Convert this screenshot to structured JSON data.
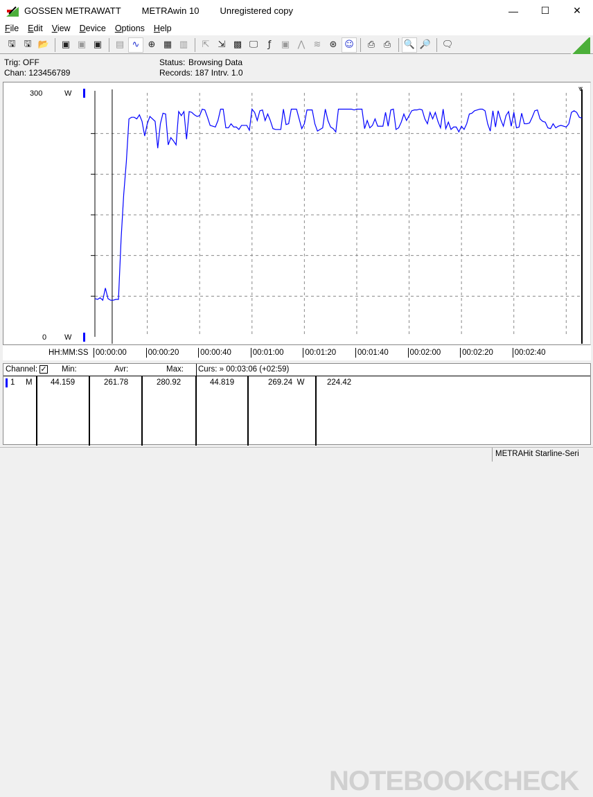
{
  "window": {
    "brand": "GOSSEN METRAWATT",
    "app": "METRAwin 10",
    "license": "Unregistered copy",
    "controls": {
      "minimize": "—",
      "maximize": "☐",
      "close": "✕"
    }
  },
  "menu": [
    "File",
    "Edit",
    "View",
    "Device",
    "Options",
    "Help"
  ],
  "toolbar": [
    {
      "icon": "save-icon",
      "glyph": "🖫",
      "state": "normal"
    },
    {
      "icon": "save-as-icon",
      "glyph": "🖫",
      "state": "normal"
    },
    {
      "icon": "open-folder-icon",
      "glyph": "📂",
      "state": "normal"
    },
    {
      "sep": true
    },
    {
      "icon": "device-read-icon",
      "glyph": "▣",
      "state": "normal"
    },
    {
      "icon": "device-transfer-icon",
      "glyph": "▣",
      "state": "disabled"
    },
    {
      "icon": "memory-read-icon",
      "glyph": "▣",
      "state": "normal"
    },
    {
      "sep": true
    },
    {
      "icon": "keypad-icon",
      "glyph": "▤",
      "state": "disabled"
    },
    {
      "icon": "waveform-icon",
      "glyph": "∿",
      "state": "active"
    },
    {
      "icon": "crosshair-icon",
      "glyph": "⊕",
      "state": "normal"
    },
    {
      "icon": "table-icon",
      "glyph": "▦",
      "state": "normal"
    },
    {
      "icon": "bar-chart-icon",
      "glyph": "▥",
      "state": "disabled"
    },
    {
      "sep": true
    },
    {
      "icon": "export-icon",
      "glyph": "⇱",
      "state": "disabled"
    },
    {
      "icon": "import-icon",
      "glyph": "⇲",
      "state": "normal"
    },
    {
      "icon": "logger-icon",
      "glyph": "▩",
      "state": "normal"
    },
    {
      "icon": "monitor-icon",
      "glyph": "🖵",
      "state": "normal"
    },
    {
      "icon": "function-icon",
      "glyph": "ƒ",
      "state": "normal"
    },
    {
      "icon": "device-icon",
      "glyph": "▣",
      "state": "disabled"
    },
    {
      "icon": "trigger-icon",
      "glyph": "⋀",
      "state": "disabled"
    },
    {
      "icon": "signal-icon",
      "glyph": "≋",
      "state": "disabled"
    },
    {
      "icon": "zoom-wave-icon",
      "glyph": "⊛",
      "state": "normal"
    },
    {
      "icon": "smiley-icon",
      "glyph": "☺",
      "state": "active"
    },
    {
      "sep": true
    },
    {
      "icon": "print-icon",
      "glyph": "⎙",
      "state": "normal"
    },
    {
      "icon": "print-preview-icon",
      "glyph": "⎙",
      "state": "normal"
    },
    {
      "sep": true
    },
    {
      "icon": "zoom-in-icon",
      "glyph": "🔍",
      "state": "active"
    },
    {
      "icon": "zoom-out-icon",
      "glyph": "🔎",
      "state": "normal"
    },
    {
      "sep": true
    },
    {
      "icon": "comment-icon",
      "glyph": "🗨",
      "state": "normal"
    }
  ],
  "info": {
    "trig": "Trig: OFF",
    "chan": "Chan:  123456789",
    "status_label": "Status:",
    "status_value": "Browsing Data",
    "records": "Records: 187   Intrv. 1.0"
  },
  "chart_data": {
    "type": "line",
    "ylim": [
      0,
      300
    ],
    "yticks": [
      "300",
      "0"
    ],
    "yunit": "W",
    "xlabel": "HH:MM:SS",
    "xlim": [
      0,
      186
    ],
    "xticks": [
      "00:00:00",
      "00:00:20",
      "00:00:40",
      "00:01:00",
      "00:01:20",
      "00:01:40",
      "00:02:00",
      "00:02:20",
      "00:02:40"
    ],
    "grid": true,
    "color": "#0000ff",
    "x_start": 0,
    "x_step": 1,
    "values": [
      47,
      46,
      48,
      45,
      60,
      47,
      45,
      45,
      46,
      46,
      120,
      175,
      215,
      268,
      270,
      270,
      268,
      273,
      265,
      247,
      262,
      271,
      268,
      265,
      232,
      262,
      275,
      274,
      236,
      245,
      241,
      236,
      277,
      272,
      277,
      243,
      277,
      276,
      273,
      271,
      272,
      280,
      279,
      270,
      260,
      259,
      258,
      266,
      280,
      280,
      257,
      257,
      262,
      258,
      258,
      255,
      260,
      260,
      260,
      254,
      280,
      276,
      266,
      278,
      279,
      266,
      274,
      266,
      256,
      255,
      255,
      255,
      280,
      261,
      262,
      280,
      280,
      280,
      268,
      256,
      262,
      279,
      279,
      279,
      262,
      253,
      255,
      257,
      280,
      266,
      258,
      256,
      252,
      280,
      280,
      280,
      280,
      280,
      280,
      279,
      280,
      280,
      280,
      256,
      266,
      257,
      260,
      268,
      259,
      259,
      259,
      276,
      259,
      279,
      280,
      255,
      257,
      264,
      274,
      266,
      272,
      278,
      279,
      279,
      280,
      279,
      268,
      262,
      276,
      268,
      276,
      265,
      257,
      280,
      256,
      264,
      255,
      258,
      258,
      252,
      259,
      255,
      262,
      274,
      275,
      278,
      279,
      280,
      280,
      278,
      262,
      253,
      278,
      258,
      278,
      267,
      259,
      272,
      277,
      259,
      276,
      257,
      258,
      275,
      262,
      262,
      263,
      270,
      278,
      279,
      268,
      265,
      264,
      257,
      256,
      262,
      257,
      259,
      260,
      259,
      258,
      262,
      276,
      278,
      276,
      270,
      269
    ]
  },
  "table": {
    "header": {
      "channel": "Channel:",
      "min": "Min:",
      "avr": "Avr:",
      "max": "Max:",
      "cursor": "Curs: » 00:03:06 (+02:59)"
    },
    "rows": [
      {
        "num": "1",
        "mode": "M",
        "min": "44.159",
        "avr": "261.78",
        "max": "280.92",
        "curs1": "44.819",
        "curs2": "269.24  W",
        "diff": "224.42",
        "color": "#0000ff"
      }
    ]
  },
  "statusbar": {
    "device": "METRAHit Starline-Seri"
  },
  "watermark": "NOTEBOOKCHECK"
}
